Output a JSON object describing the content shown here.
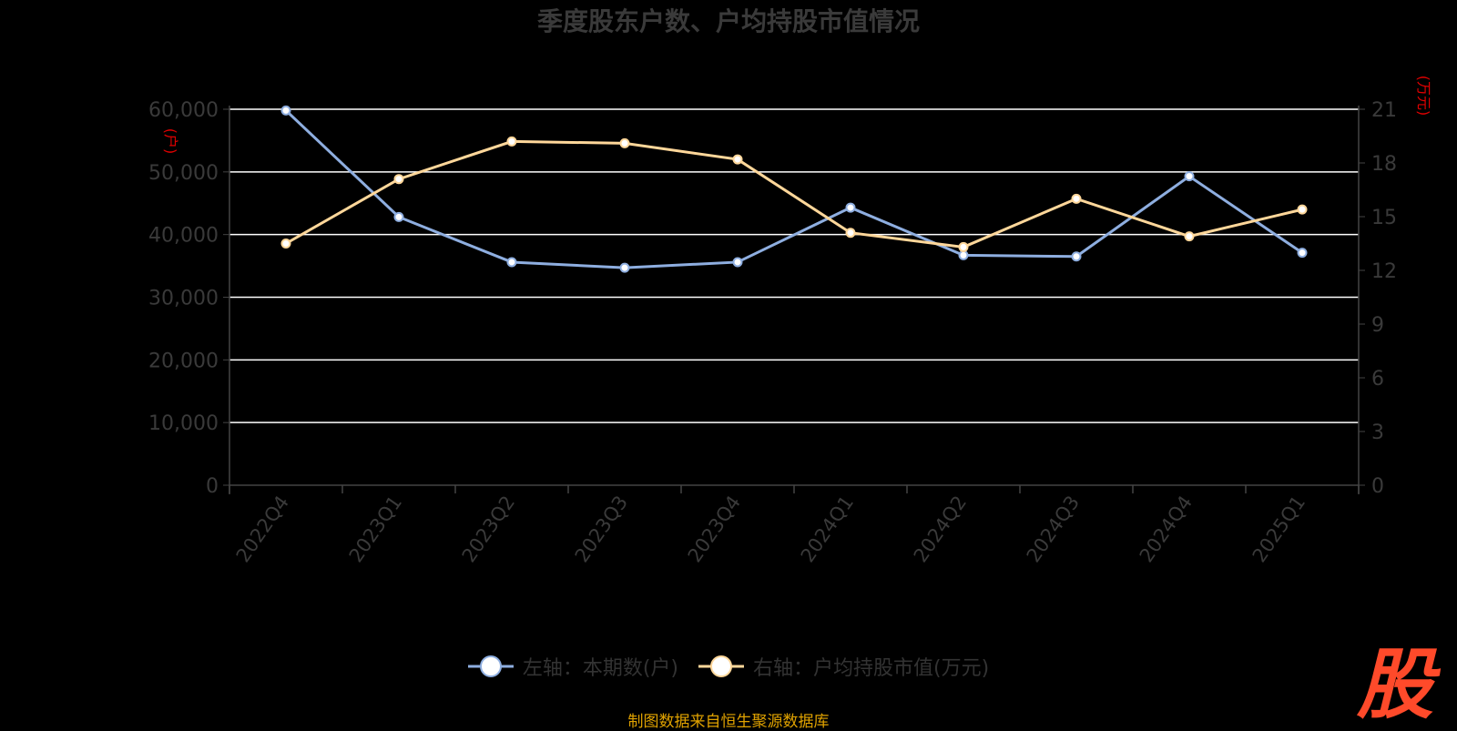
{
  "chart_data": {
    "type": "line",
    "title": "季度股东户数、户均持股市值情况",
    "categories": [
      "2022Q4",
      "2023Q1",
      "2023Q2",
      "2023Q3",
      "2023Q4",
      "2024Q1",
      "2024Q2",
      "2024Q3",
      "2024Q4",
      "2025Q1"
    ],
    "series": [
      {
        "name": "左轴：本期数(户)",
        "axis": "left",
        "color": "#8eaee0",
        "values": [
          59800,
          42800,
          35600,
          34700,
          35600,
          44300,
          36700,
          36500,
          49300,
          37100
        ]
      },
      {
        "name": "右轴：户均持股市值(万元)",
        "axis": "right",
        "color": "#ffd79a",
        "values": [
          13.5,
          17.1,
          19.2,
          19.1,
          18.2,
          14.1,
          13.3,
          16.0,
          13.9,
          15.4
        ]
      }
    ],
    "y_left": {
      "ticks": [
        "0",
        "10,000",
        "20,000",
        "30,000",
        "40,000",
        "50,000",
        "60,000"
      ],
      "min": 0,
      "max": 60000,
      "unit": "(户)"
    },
    "y_right": {
      "ticks": [
        "0",
        "3",
        "6",
        "9",
        "12",
        "15",
        "18",
        "21"
      ],
      "min": 0,
      "max": 21,
      "unit": "(万元)"
    },
    "grid": true,
    "legend_position": "bottom"
  },
  "footer": {
    "source": "制图数据来自恒生聚源数据库",
    "watermark": "股"
  }
}
